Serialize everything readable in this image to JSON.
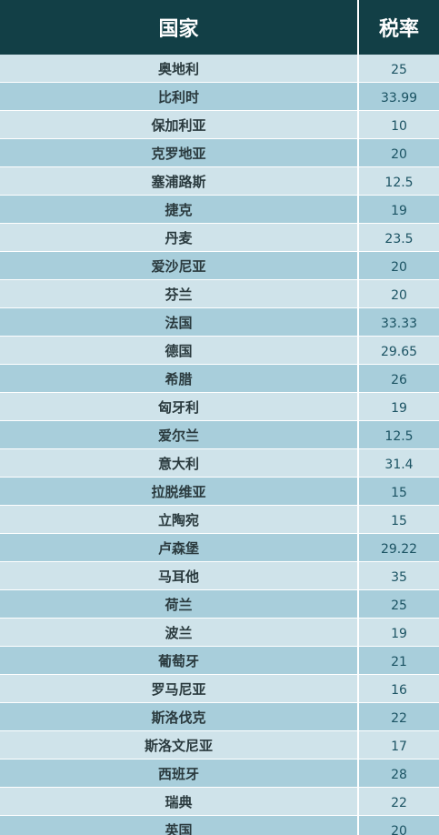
{
  "table": {
    "headers": {
      "country": "国家",
      "rate": "税率"
    },
    "rows": [
      {
        "country": "奥地利",
        "rate": "25"
      },
      {
        "country": "比利时",
        "rate": "33.99"
      },
      {
        "country": "保加利亚",
        "rate": "10"
      },
      {
        "country": "克罗地亚",
        "rate": "20"
      },
      {
        "country": "塞浦路斯",
        "rate": "12.5"
      },
      {
        "country": "捷克",
        "rate": "19"
      },
      {
        "country": "丹麦",
        "rate": "23.5"
      },
      {
        "country": "爱沙尼亚",
        "rate": "20"
      },
      {
        "country": "芬兰",
        "rate": "20"
      },
      {
        "country": "法国",
        "rate": "33.33"
      },
      {
        "country": "德国",
        "rate": "29.65"
      },
      {
        "country": "希腊",
        "rate": "26"
      },
      {
        "country": "匈牙利",
        "rate": "19"
      },
      {
        "country": "爱尔兰",
        "rate": "12.5"
      },
      {
        "country": "意大利",
        "rate": "31.4"
      },
      {
        "country": "拉脱维亚",
        "rate": "15"
      },
      {
        "country": "立陶宛",
        "rate": "15"
      },
      {
        "country": "卢森堡",
        "rate": "29.22"
      },
      {
        "country": "马耳他",
        "rate": "35"
      },
      {
        "country": "荷兰",
        "rate": "25"
      },
      {
        "country": "波兰",
        "rate": "19"
      },
      {
        "country": "葡萄牙",
        "rate": "21"
      },
      {
        "country": "罗马尼亚",
        "rate": "16"
      },
      {
        "country": "斯洛伐克",
        "rate": "22"
      },
      {
        "country": "斯洛文尼亚",
        "rate": "17"
      },
      {
        "country": "西班牙",
        "rate": "28"
      },
      {
        "country": "瑞典",
        "rate": "22"
      },
      {
        "country": "英国",
        "rate": "20"
      }
    ]
  },
  "colors": {
    "header_bg": "#123f46",
    "row_light": "#cfe3ea",
    "row_dark": "#a8cedb",
    "rate_text": "#1b5363"
  }
}
